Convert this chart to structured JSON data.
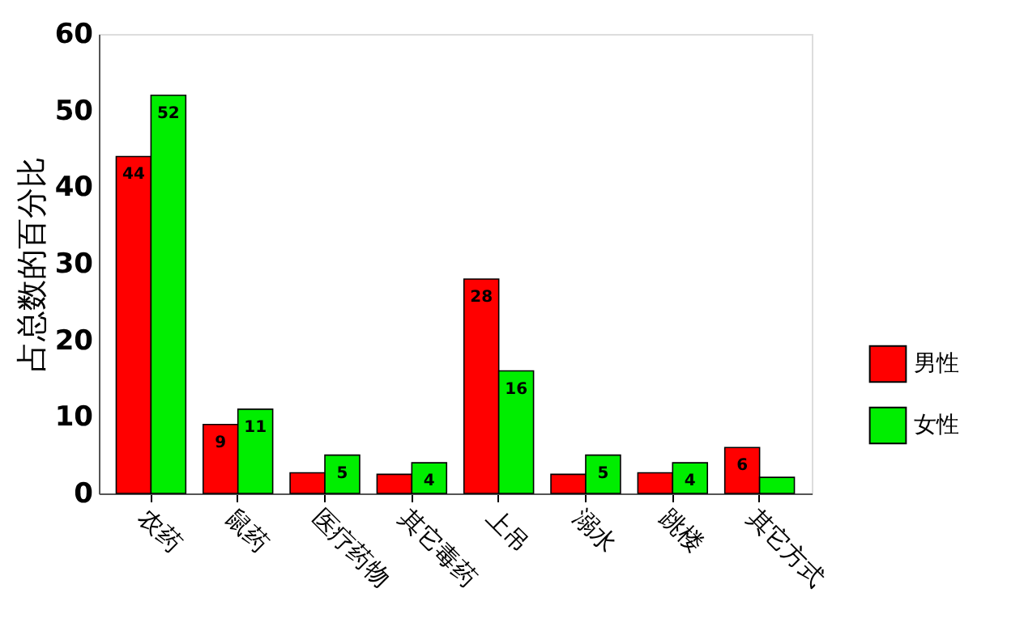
{
  "chart_data": {
    "type": "bar",
    "ylabel": "占总数的百分比",
    "categories": [
      "农药",
      "鼠药",
      "医疗药物",
      "其它毒药",
      "上吊",
      "溺水",
      "跳楼",
      "其它方式"
    ],
    "series": [
      {
        "name": "男性",
        "color": "#ff0000",
        "values": [
          44,
          9,
          2.7,
          2.5,
          28,
          2.5,
          2.7,
          6
        ],
        "value_labels": [
          "44",
          "9",
          null,
          null,
          "28",
          null,
          null,
          "6"
        ]
      },
      {
        "name": "女性",
        "color": "#00ee00",
        "values": [
          52,
          11,
          5,
          4,
          16,
          5,
          4,
          2.1
        ],
        "value_labels": [
          "52",
          "11",
          "5",
          "4",
          "16",
          "5",
          "4",
          null
        ]
      }
    ],
    "ylim": [
      0,
      60
    ],
    "yticks": [
      0,
      10,
      20,
      30,
      40,
      50,
      60
    ],
    "grid": false,
    "legend": "bottom right"
  }
}
